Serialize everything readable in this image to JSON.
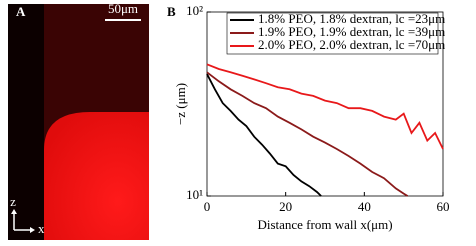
{
  "panel_a": {
    "label": "A",
    "scale_bar": "50μm",
    "axis_z": "z",
    "axis_x": "x"
  },
  "chart_data": {
    "type": "line",
    "panel_label": "B",
    "x_label": "Distance from wall x(μm)",
    "y_label": "−z (μm)",
    "log_y": true,
    "legend": "upper right",
    "xlim": [
      0,
      60
    ],
    "xticks": [
      0,
      20,
      40,
      60
    ],
    "ylim": [
      10,
      100
    ],
    "yticks": [
      {
        "value": 10,
        "label": "10¹"
      },
      {
        "value": 100,
        "label": "10²"
      }
    ],
    "series": [
      {
        "name": "1.8% PEO, 1.8% dextran, lc =23μm",
        "color": "#000000",
        "x": [
          0,
          2,
          4,
          6,
          8,
          10,
          12,
          14,
          16,
          18,
          20,
          22,
          24,
          26,
          28,
          29
        ],
        "values": [
          46,
          38,
          32,
          29,
          26,
          24,
          21,
          19,
          17,
          15,
          14.5,
          13,
          12,
          11.3,
          10.5,
          10
        ]
      },
      {
        "name": "1.9% PEO, 1.9% dextran, lc =39μm",
        "color": "#8b1a1a",
        "x": [
          0,
          3,
          6,
          9,
          12,
          15,
          18,
          21,
          24,
          27,
          30,
          33,
          36,
          39,
          42,
          45,
          48,
          50,
          51
        ],
        "values": [
          47,
          42,
          38,
          35,
          32,
          30,
          27,
          25,
          23,
          21,
          19.5,
          18,
          16.5,
          15,
          13.5,
          12.5,
          11,
          10.3,
          10
        ]
      },
      {
        "name": "2.0% PEO, 2.0% dextran, lc =70μm",
        "color": "#e8181a",
        "x": [
          0,
          3,
          6,
          9,
          12,
          15,
          18,
          21,
          24,
          27,
          30,
          33,
          36,
          39,
          42,
          45,
          48,
          50,
          52,
          54,
          56,
          58,
          60
        ],
        "values": [
          52,
          49,
          47,
          45,
          43,
          41,
          39,
          38,
          36,
          35,
          33,
          32,
          30,
          30,
          29,
          27,
          26,
          28,
          22,
          25,
          20,
          22,
          18
        ]
      }
    ]
  }
}
